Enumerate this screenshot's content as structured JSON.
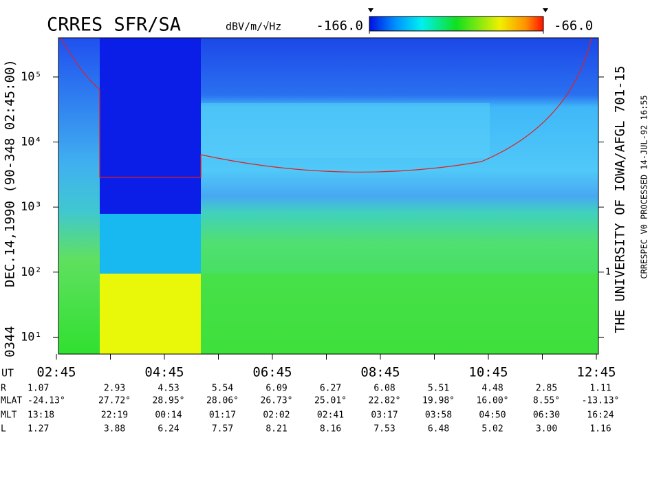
{
  "chart_data": {
    "type": "spectrogram",
    "title": "CRRES SFR/SA",
    "zlabel": "dBV/m/√Hz",
    "zlim": [
      -166,
      -66
    ],
    "zticks": [
      {
        "value": -166,
        "label": "-166.0"
      },
      {
        "value": -66,
        "label": "-66.0"
      }
    ],
    "ylog": true,
    "ylim": [
      5.5,
      400000
    ],
    "yticks": [
      {
        "value": 10,
        "label": "10¹"
      },
      {
        "value": 100,
        "label": "10²"
      },
      {
        "value": 1000,
        "label": "10³"
      },
      {
        "value": 10000,
        "label": "10⁴"
      },
      {
        "value": 100000,
        "label": "10⁵"
      }
    ],
    "right_axis_label": "1",
    "xlabel": "UT",
    "categories": [
      "02:45",
      null,
      "04:45",
      null,
      "06:45",
      null,
      "08:45",
      null,
      "10:45",
      null,
      "12:45"
    ],
    "left_text": "DEC.14,1990  (90-348 02:45:00)",
    "left_id": "0344",
    "right_text": "THE UNIVERSITY OF IOWA/AFGL 701-15",
    "right_note": "CRRESPEC V0   PROCESSED 14-JUL-92 16:55",
    "ephemeris": [
      {
        "name": "R",
        "values": [
          "1.07",
          "2.93",
          "4.53",
          "5.54",
          "6.09",
          "6.27",
          "6.08",
          "5.51",
          "4.48",
          "2.85",
          "1.11"
        ]
      },
      {
        "name": "MLAT",
        "values": [
          "-24.13°",
          "27.72°",
          "28.95°",
          "28.06°",
          "26.73°",
          "25.01°",
          "22.82°",
          "19.98°",
          "16.00°",
          "8.55°",
          "-13.13°"
        ]
      },
      {
        "name": "MLT",
        "values": [
          "13:18",
          "22:19",
          "00:14",
          "01:17",
          "02:02",
          "02:41",
          "03:17",
          "03:58",
          "04:50",
          "06:30",
          "16:24"
        ]
      },
      {
        "name": "L",
        "values": [
          "1.27",
          "3.88",
          "6.24",
          "7.57",
          "8.21",
          "8.16",
          "7.53",
          "6.48",
          "5.02",
          "3.00",
          "1.16"
        ]
      }
    ]
  }
}
